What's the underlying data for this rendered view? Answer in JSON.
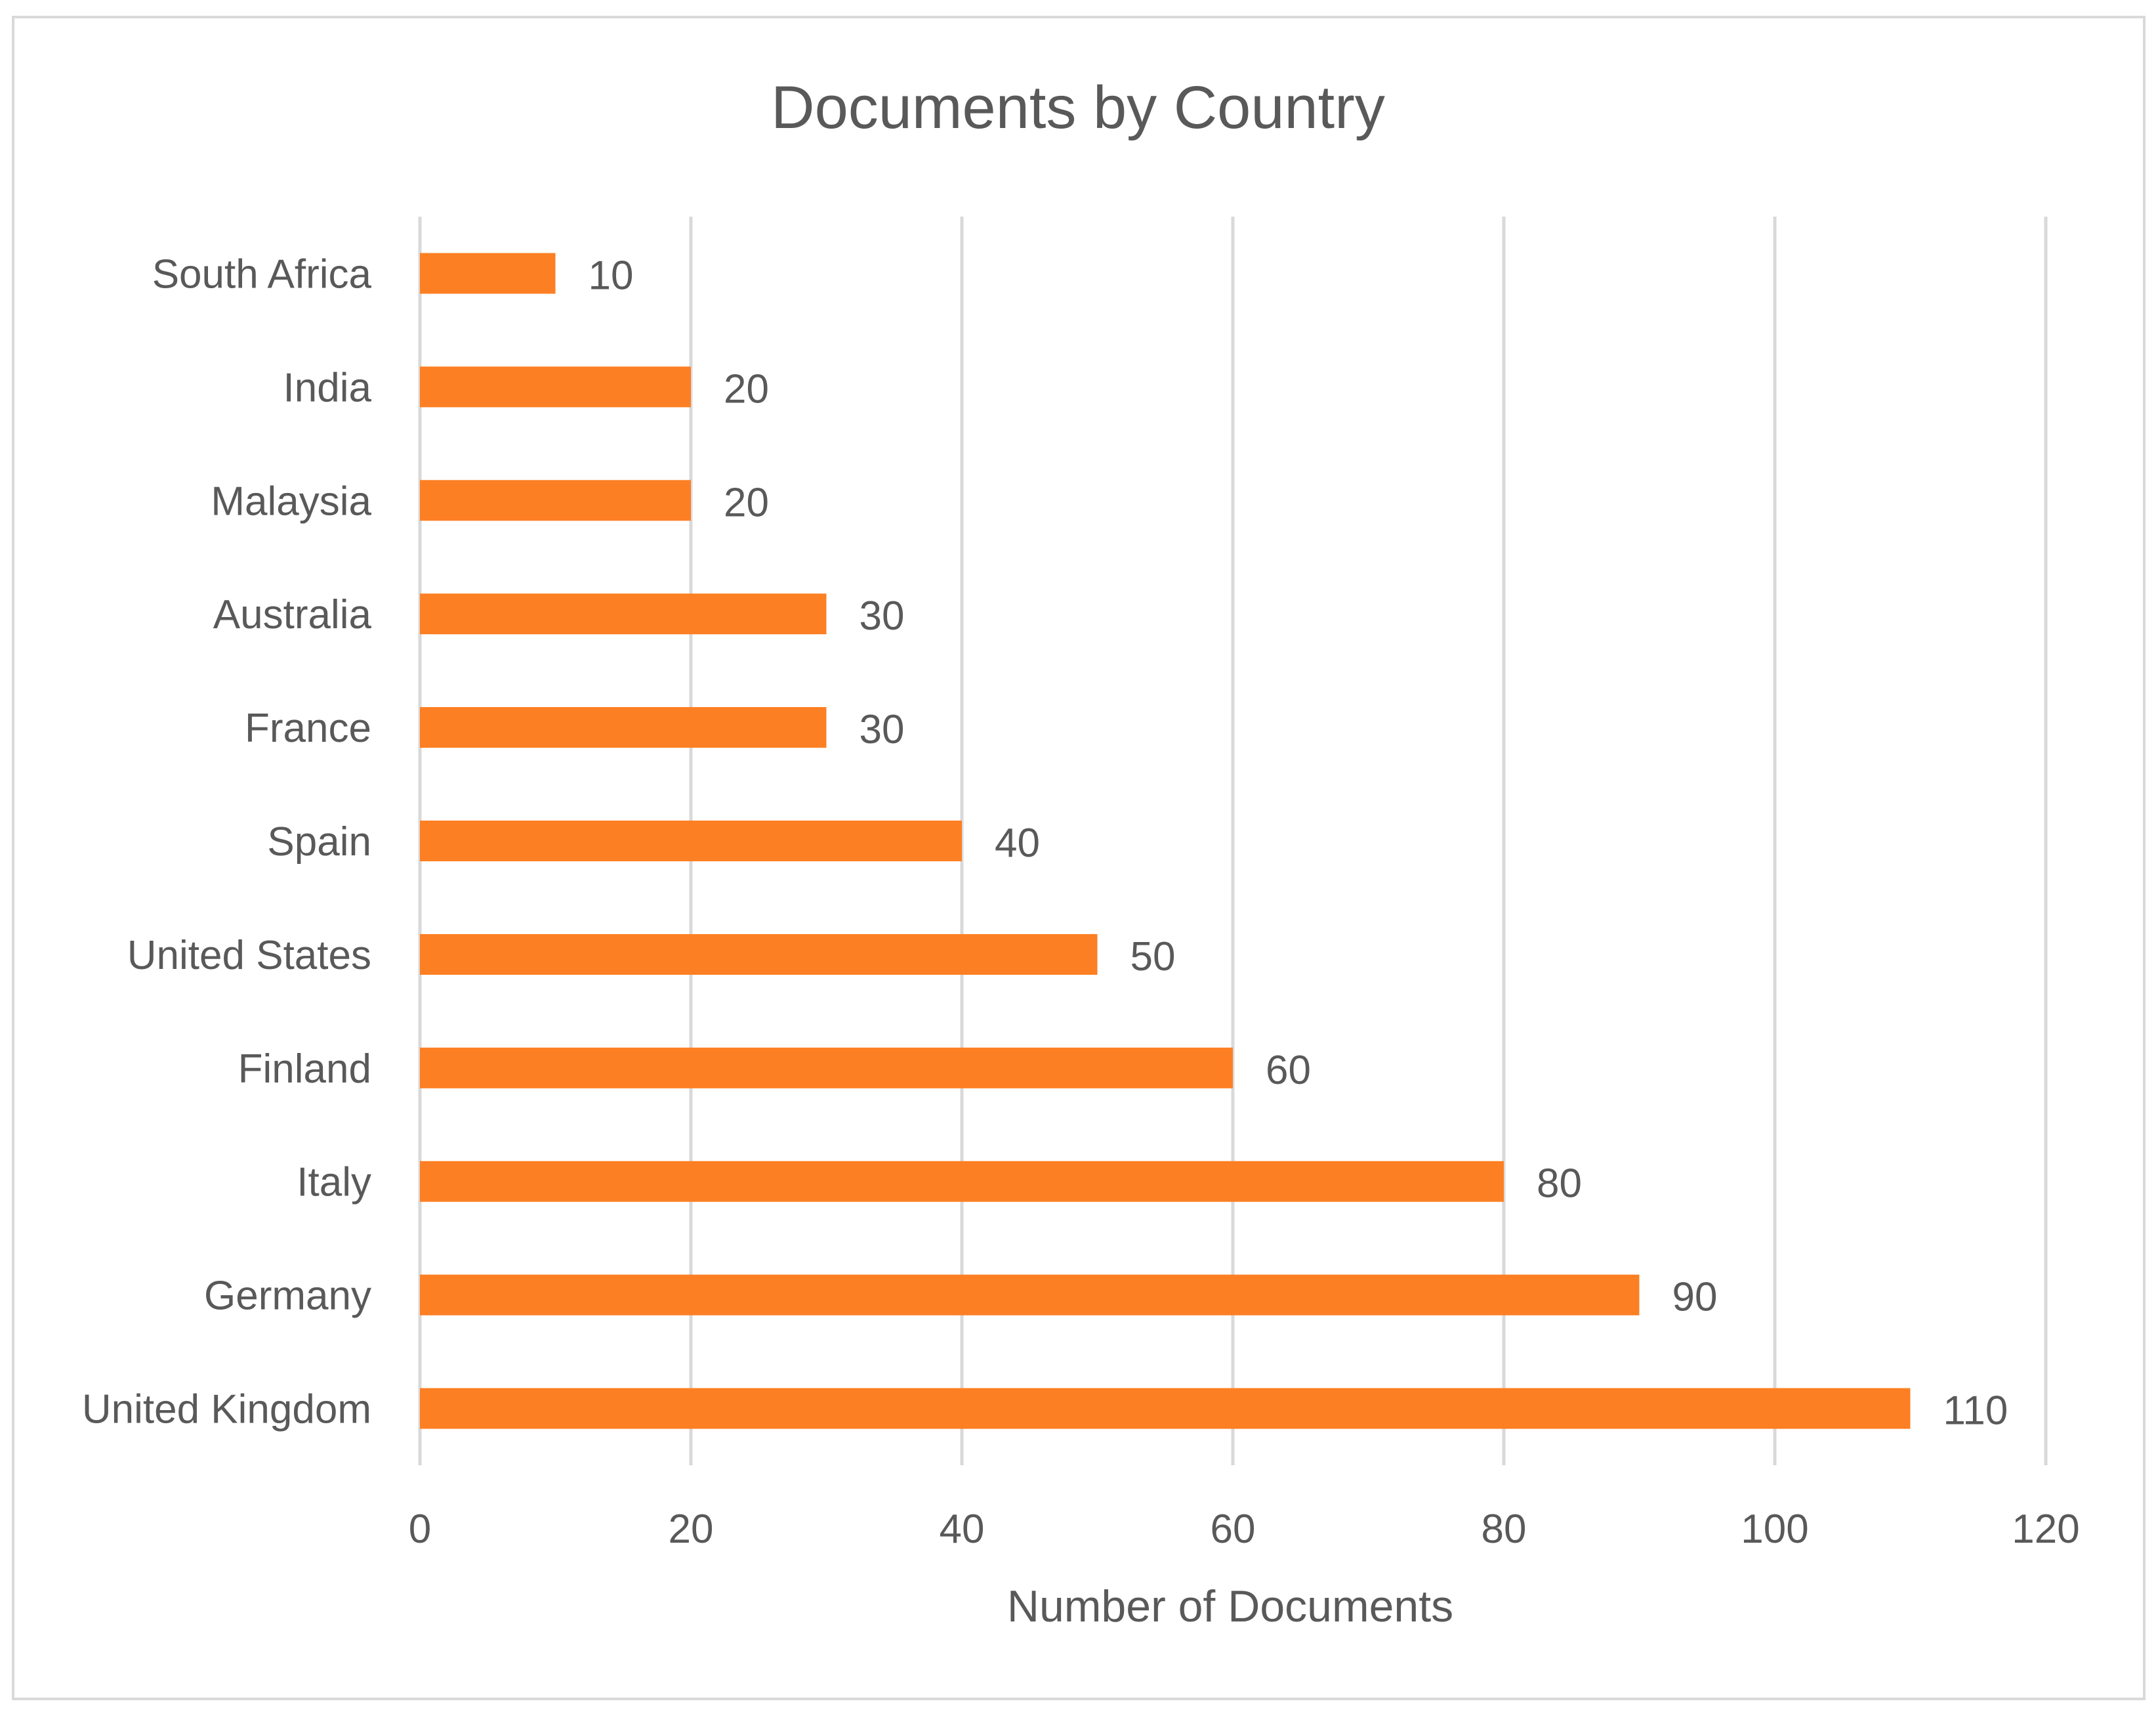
{
  "chart_data": {
    "type": "bar",
    "orientation": "horizontal",
    "title": "Documents by Country",
    "xlabel": "Number of Documents",
    "ylabel": "",
    "categories": [
      "South Africa",
      "India",
      "Malaysia",
      "Australia",
      "France",
      "Spain",
      "United States",
      "Finland",
      "Italy",
      "Germany",
      "United Kingdom"
    ],
    "values": [
      10,
      20,
      20,
      30,
      30,
      40,
      50,
      60,
      80,
      90,
      110
    ],
    "xlim": [
      0,
      120
    ],
    "xticks": [
      0,
      20,
      40,
      60,
      80,
      100,
      120
    ],
    "tick_labels": [
      "0",
      "20",
      "40",
      "60",
      "80",
      "100",
      "120"
    ],
    "data_labels": [
      "10",
      "20",
      "20",
      "30",
      "30",
      "40",
      "50",
      "60",
      "80",
      "90",
      "110"
    ],
    "grid": "vertical major gridlines",
    "legend": "none",
    "colors": {
      "bar": "#fd7f23",
      "gridline": "#d9d9d9",
      "text": "#595959",
      "border": "#d9d9d9",
      "background": "#ffffff"
    }
  }
}
